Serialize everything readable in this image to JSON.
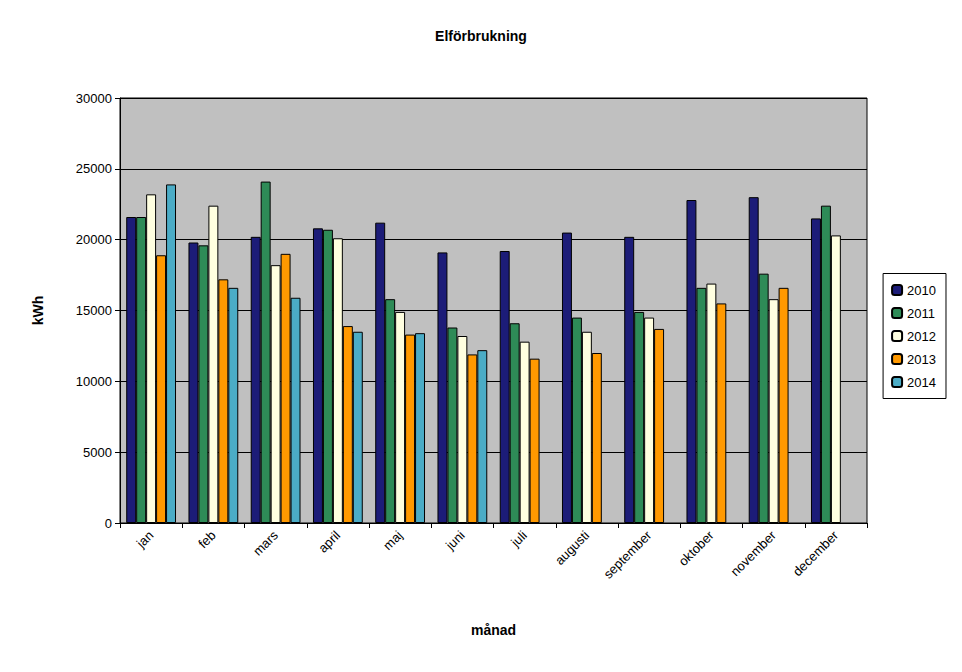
{
  "chart_data": {
    "type": "bar",
    "title": "Elförbrukning",
    "x_label": "månad",
    "y_label": "kWh",
    "categories": [
      "jan",
      "feb",
      "mars",
      "april",
      "maj",
      "juni",
      "juli",
      "augusti",
      "september",
      "oktober",
      "november",
      "december"
    ],
    "series": [
      {
        "name": "2010",
        "color": "#1c1c78",
        "values": [
          21600,
          19800,
          20200,
          20800,
          21200,
          19100,
          19200,
          20500,
          20200,
          22800,
          23000,
          21500
        ]
      },
      {
        "name": "2011",
        "color": "#2e8b57",
        "values": [
          21600,
          19600,
          24100,
          20700,
          15800,
          13800,
          14100,
          14500,
          14900,
          16600,
          17600,
          22400
        ]
      },
      {
        "name": "2012",
        "color": "#ffffe0",
        "values": [
          23200,
          22400,
          18200,
          20100,
          14900,
          13200,
          12800,
          13500,
          14500,
          16900,
          15800,
          20300
        ]
      },
      {
        "name": "2013",
        "color": "#ff9900",
        "values": [
          18900,
          17200,
          19000,
          13900,
          13300,
          11900,
          11600,
          12000,
          13700,
          15500,
          16600,
          null
        ]
      },
      {
        "name": "2014",
        "color": "#4bacc6",
        "values": [
          23900,
          16600,
          15900,
          13500,
          13400,
          12200,
          null,
          null,
          null,
          null,
          null,
          null
        ]
      }
    ],
    "ylim": [
      0,
      30000
    ],
    "yticks": [
      0,
      5000,
      10000,
      15000,
      20000,
      25000,
      30000
    ],
    "grid": true,
    "legend": "right"
  }
}
